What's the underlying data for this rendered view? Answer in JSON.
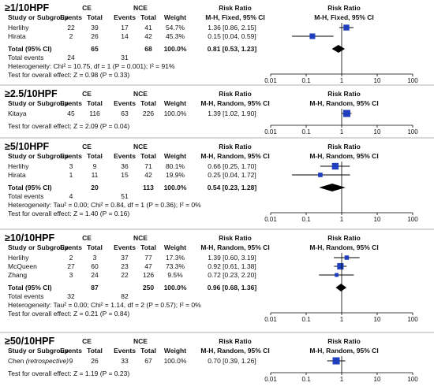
{
  "chart_data": {
    "type": "forest",
    "colors": {
      "study_marker": "#1f3fbf",
      "total_marker": "#000000",
      "text": "#111111"
    },
    "axis_ticks": [
      "0.01",
      "0.1",
      "1",
      "10",
      "100"
    ],
    "xlim": [
      0.01,
      100
    ],
    "x_scale": "log",
    "panels": [
      {
        "title": "≥1/10HPF",
        "group_labels": [
          "CE",
          "NCE"
        ],
        "columns": [
          "Study or Subgroup",
          "Events",
          "Total",
          "Events",
          "Total",
          "Weight"
        ],
        "effect_header": "Risk Ratio",
        "effect_method": "M-H, Fixed, 95% CI",
        "studies": [
          {
            "name": "Herlihy",
            "note": "",
            "e1": "22",
            "n1": "39",
            "e2": "17",
            "n2": "41",
            "weight": "54.7%",
            "ci_text": "1.36 [0.86, 2.15]",
            "rr": 1.36,
            "lo": 0.86,
            "hi": 2.15,
            "w": 54.7
          },
          {
            "name": "Hirata",
            "note": "",
            "e1": "2",
            "n1": "26",
            "e2": "14",
            "n2": "42",
            "weight": "45.3%",
            "ci_text": "0.15 [0.04, 0.59]",
            "rr": 0.15,
            "lo": 0.04,
            "hi": 0.59,
            "w": 45.3
          }
        ],
        "total": {
          "label": "Total (95% CI)",
          "n1": "65",
          "n2": "68",
          "weight": "100.0%",
          "ci_text": "0.81 [0.53, 1.23]",
          "rr": 0.81,
          "lo": 0.53,
          "hi": 1.23
        },
        "total_events": {
          "label": "Total events",
          "e1": "24",
          "e2": "31"
        },
        "heterogeneity": "Heterogeneity: Chi² = 10.75, df = 1 (P = 0.001); I² = 91%",
        "overall_test": "Test for overall effect: Z = 0.98 (P = 0.33)"
      },
      {
        "title": "≥2.5/10HPF",
        "group_labels": [
          "CE",
          "NCE"
        ],
        "columns": [
          "Study or Subgroup",
          "Events",
          "Total",
          "Events",
          "Total",
          "Weight"
        ],
        "effect_header": "Risk Ratio",
        "effect_method": "M-H, Random, 95% CI",
        "studies": [
          {
            "name": "Kitaya",
            "note": "",
            "e1": "45",
            "n1": "116",
            "e2": "63",
            "n2": "226",
            "weight": "100.0%",
            "ci_text": "1.39 [1.02, 1.90]",
            "rr": 1.39,
            "lo": 1.02,
            "hi": 1.9,
            "w": 100
          }
        ],
        "total": null,
        "total_events": null,
        "heterogeneity": "",
        "overall_test": "Test for overall effect: Z = 2.09 (P = 0.04)"
      },
      {
        "title": "≥5/10HPF",
        "group_labels": [
          "CE",
          "NCE"
        ],
        "columns": [
          "Study or Subgroup",
          "Events",
          "Total",
          "Events",
          "Total",
          "Weight"
        ],
        "effect_header": "Risk Ratio",
        "effect_method": "M-H, Random, 95% CI",
        "studies": [
          {
            "name": "Herlihy",
            "note": "",
            "e1": "3",
            "n1": "9",
            "e2": "36",
            "n2": "71",
            "weight": "80.1%",
            "ci_text": "0.66 [0.25, 1.70]",
            "rr": 0.66,
            "lo": 0.25,
            "hi": 1.7,
            "w": 80.1
          },
          {
            "name": "Hirata",
            "note": "",
            "e1": "1",
            "n1": "11",
            "e2": "15",
            "n2": "42",
            "weight": "19.9%",
            "ci_text": "0.25 [0.04, 1.72]",
            "rr": 0.25,
            "lo": 0.04,
            "hi": 1.72,
            "w": 19.9
          }
        ],
        "total": {
          "label": "Total (95% CI)",
          "n1": "20",
          "n2": "113",
          "weight": "100.0%",
          "ci_text": "0.54 [0.23, 1.28]",
          "rr": 0.54,
          "lo": 0.23,
          "hi": 1.28
        },
        "total_events": {
          "label": "Total events",
          "e1": "4",
          "e2": "51"
        },
        "heterogeneity": "Heterogeneity: Tau² = 0.00; Chi² = 0.84, df = 1 (P = 0.36); I² = 0%",
        "overall_test": "Test for overall effect: Z = 1.40 (P = 0.16)"
      },
      {
        "title": "≥10/10HPF",
        "group_labels": [
          "CE",
          "NCE"
        ],
        "columns": [
          "Study or Subgroup",
          "Events",
          "Total",
          "Events",
          "Total",
          "Weight"
        ],
        "effect_header": "Risk Ratio",
        "effect_method": "M-H, Random, 95% CI",
        "studies": [
          {
            "name": "Herlihy",
            "note": "",
            "e1": "2",
            "n1": "3",
            "e2": "37",
            "n2": "77",
            "weight": "17.3%",
            "ci_text": "1.39 [0.60, 3.19]",
            "rr": 1.39,
            "lo": 0.6,
            "hi": 3.19,
            "w": 17.3
          },
          {
            "name": "McQueen",
            "note": "",
            "e1": "27",
            "n1": "60",
            "e2": "23",
            "n2": "47",
            "weight": "73.3%",
            "ci_text": "0.92 [0.61, 1.38]",
            "rr": 0.92,
            "lo": 0.61,
            "hi": 1.38,
            "w": 73.3
          },
          {
            "name": "Zhang",
            "note": "",
            "e1": "3",
            "n1": "24",
            "e2": "22",
            "n2": "126",
            "weight": "9.5%",
            "ci_text": "0.72 [0.23, 2.20]",
            "rr": 0.72,
            "lo": 0.23,
            "hi": 2.2,
            "w": 9.5
          }
        ],
        "total": {
          "label": "Total (95% CI)",
          "n1": "87",
          "n2": "250",
          "weight": "100.0%",
          "ci_text": "0.96 [0.68, 1.36]",
          "rr": 0.96,
          "lo": 0.68,
          "hi": 1.36
        },
        "total_events": {
          "label": "Total events",
          "e1": "32",
          "e2": "82"
        },
        "heterogeneity": "Heterogeneity: Tau² = 0.00; Chi² = 1.14, df = 2 (P = 0.57); I² = 0%",
        "overall_test": "Test for overall effect: Z = 0.21 (P = 0.84)"
      },
      {
        "title": "≥50/10HPF",
        "group_labels": [
          "CE",
          "NCE"
        ],
        "columns": [
          "Study or Subgroup",
          "Events",
          "Total",
          "Events",
          "Total",
          "Weight"
        ],
        "effect_header": "Risk Ratio",
        "effect_method": "M-H, Random, 95% CI",
        "studies": [
          {
            "name": "Chen",
            "note": "(retrospective)",
            "e1": "9",
            "n1": "26",
            "e2": "33",
            "n2": "67",
            "weight": "100.0%",
            "ci_text": "0.70 [0.39, 1.26]",
            "rr": 0.7,
            "lo": 0.39,
            "hi": 1.26,
            "w": 100
          }
        ],
        "total": null,
        "total_events": null,
        "heterogeneity": "",
        "overall_test": "Test for overall effect: Z = 1.19 (P = 0.23)"
      }
    ]
  }
}
